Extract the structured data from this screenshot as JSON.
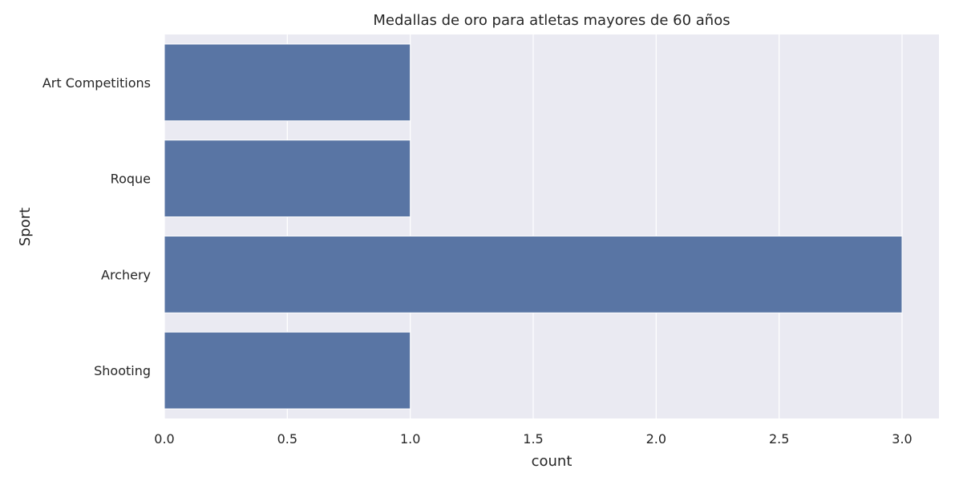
{
  "chart_data": {
    "type": "bar",
    "orientation": "horizontal",
    "title": "Medallas de oro para atletas mayores de 60 años",
    "xlabel": "count",
    "ylabel": "Sport",
    "categories": [
      "Art Competitions",
      "Roque",
      "Archery",
      "Shooting"
    ],
    "values": [
      1,
      1,
      3,
      1
    ],
    "xlim": [
      0,
      3.15
    ],
    "xticks": [
      "0.0",
      "0.5",
      "1.0",
      "1.5",
      "2.0",
      "2.5",
      "3.0"
    ],
    "grid": true,
    "legend": "none",
    "colors": {
      "bar": "#5975a4",
      "plot_background": "#eaeaf2",
      "grid": "#ffffff",
      "text": "#262626"
    }
  }
}
